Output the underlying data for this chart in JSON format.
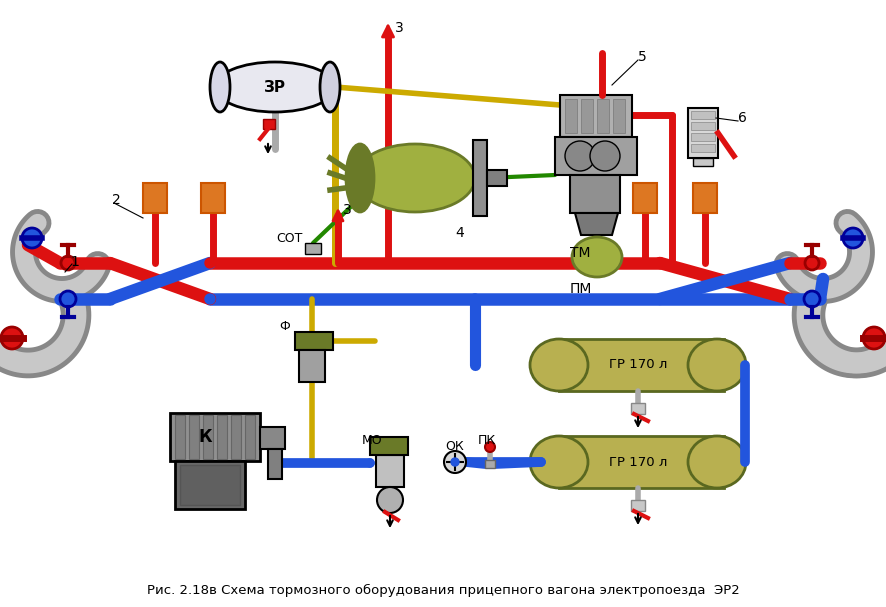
{
  "title": "Рис. 2.18в Схема тормозного оборудования прицепного вагона электропоезда  ЭР2",
  "bg_color": "#ffffff",
  "red": "#dd1111",
  "blue": "#2255dd",
  "yellow": "#ccaa00",
  "green": "#228800",
  "gray": "#909090",
  "light_gray": "#cccccc",
  "dark_gray": "#555555",
  "orange": "#dd7722",
  "olive": "#6a7a28",
  "olive_light": "#a0b040",
  "tank_fill": "#b8b050",
  "tank_outline": "#5a6820",
  "tm_label": "ТМ",
  "pm_label": "ПМ",
  "zr_label": "ЗР",
  "k_label": "К",
  "mo_label": "МО",
  "ok_label": "ОК",
  "pk_label": "ПК",
  "f_label": "Ф",
  "cot_label": "СОТ",
  "gr_label": "ГР 170 л",
  "lbl_1": "1",
  "lbl_2": "2",
  "lbl_3": "3",
  "lbl_4": "4",
  "lbl_5": "5",
  "lbl_6": "6"
}
